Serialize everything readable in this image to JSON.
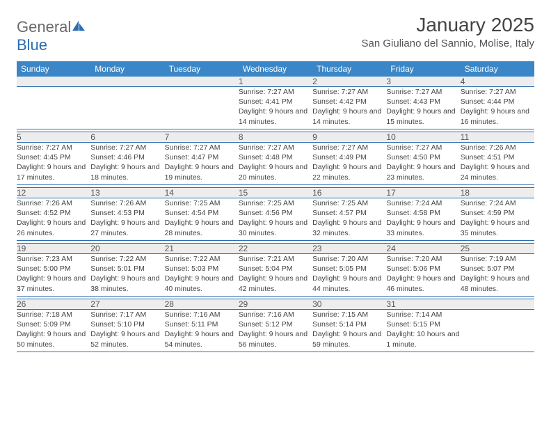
{
  "brand": {
    "part1": "General",
    "part2": "Blue"
  },
  "title": "January 2025",
  "location": "San Giuliano del Sannio, Molise, Italy",
  "colors": {
    "header_bg": "#3b86c6",
    "header_text": "#ffffff",
    "daynum_bg": "#ededed",
    "border": "#2a6db0",
    "logo_gray": "#6a6a6a",
    "logo_blue": "#2a6db0"
  },
  "day_headers": [
    "Sunday",
    "Monday",
    "Tuesday",
    "Wednesday",
    "Thursday",
    "Friday",
    "Saturday"
  ],
  "weeks": [
    {
      "nums": [
        "",
        "",
        "",
        "1",
        "2",
        "3",
        "4"
      ],
      "infos": [
        "",
        "",
        "",
        "Sunrise: 7:27 AM\nSunset: 4:41 PM\nDaylight: 9 hours and 14 minutes.",
        "Sunrise: 7:27 AM\nSunset: 4:42 PM\nDaylight: 9 hours and 14 minutes.",
        "Sunrise: 7:27 AM\nSunset: 4:43 PM\nDaylight: 9 hours and 15 minutes.",
        "Sunrise: 7:27 AM\nSunset: 4:44 PM\nDaylight: 9 hours and 16 minutes."
      ]
    },
    {
      "nums": [
        "5",
        "6",
        "7",
        "8",
        "9",
        "10",
        "11"
      ],
      "infos": [
        "Sunrise: 7:27 AM\nSunset: 4:45 PM\nDaylight: 9 hours and 17 minutes.",
        "Sunrise: 7:27 AM\nSunset: 4:46 PM\nDaylight: 9 hours and 18 minutes.",
        "Sunrise: 7:27 AM\nSunset: 4:47 PM\nDaylight: 9 hours and 19 minutes.",
        "Sunrise: 7:27 AM\nSunset: 4:48 PM\nDaylight: 9 hours and 20 minutes.",
        "Sunrise: 7:27 AM\nSunset: 4:49 PM\nDaylight: 9 hours and 22 minutes.",
        "Sunrise: 7:27 AM\nSunset: 4:50 PM\nDaylight: 9 hours and 23 minutes.",
        "Sunrise: 7:26 AM\nSunset: 4:51 PM\nDaylight: 9 hours and 24 minutes."
      ]
    },
    {
      "nums": [
        "12",
        "13",
        "14",
        "15",
        "16",
        "17",
        "18"
      ],
      "infos": [
        "Sunrise: 7:26 AM\nSunset: 4:52 PM\nDaylight: 9 hours and 26 minutes.",
        "Sunrise: 7:26 AM\nSunset: 4:53 PM\nDaylight: 9 hours and 27 minutes.",
        "Sunrise: 7:25 AM\nSunset: 4:54 PM\nDaylight: 9 hours and 28 minutes.",
        "Sunrise: 7:25 AM\nSunset: 4:56 PM\nDaylight: 9 hours and 30 minutes.",
        "Sunrise: 7:25 AM\nSunset: 4:57 PM\nDaylight: 9 hours and 32 minutes.",
        "Sunrise: 7:24 AM\nSunset: 4:58 PM\nDaylight: 9 hours and 33 minutes.",
        "Sunrise: 7:24 AM\nSunset: 4:59 PM\nDaylight: 9 hours and 35 minutes."
      ]
    },
    {
      "nums": [
        "19",
        "20",
        "21",
        "22",
        "23",
        "24",
        "25"
      ],
      "infos": [
        "Sunrise: 7:23 AM\nSunset: 5:00 PM\nDaylight: 9 hours and 37 minutes.",
        "Sunrise: 7:22 AM\nSunset: 5:01 PM\nDaylight: 9 hours and 38 minutes.",
        "Sunrise: 7:22 AM\nSunset: 5:03 PM\nDaylight: 9 hours and 40 minutes.",
        "Sunrise: 7:21 AM\nSunset: 5:04 PM\nDaylight: 9 hours and 42 minutes.",
        "Sunrise: 7:20 AM\nSunset: 5:05 PM\nDaylight: 9 hours and 44 minutes.",
        "Sunrise: 7:20 AM\nSunset: 5:06 PM\nDaylight: 9 hours and 46 minutes.",
        "Sunrise: 7:19 AM\nSunset: 5:07 PM\nDaylight: 9 hours and 48 minutes."
      ]
    },
    {
      "nums": [
        "26",
        "27",
        "28",
        "29",
        "30",
        "31",
        ""
      ],
      "infos": [
        "Sunrise: 7:18 AM\nSunset: 5:09 PM\nDaylight: 9 hours and 50 minutes.",
        "Sunrise: 7:17 AM\nSunset: 5:10 PM\nDaylight: 9 hours and 52 minutes.",
        "Sunrise: 7:16 AM\nSunset: 5:11 PM\nDaylight: 9 hours and 54 minutes.",
        "Sunrise: 7:16 AM\nSunset: 5:12 PM\nDaylight: 9 hours and 56 minutes.",
        "Sunrise: 7:15 AM\nSunset: 5:14 PM\nDaylight: 9 hours and 59 minutes.",
        "Sunrise: 7:14 AM\nSunset: 5:15 PM\nDaylight: 10 hours and 1 minute.",
        ""
      ]
    }
  ]
}
